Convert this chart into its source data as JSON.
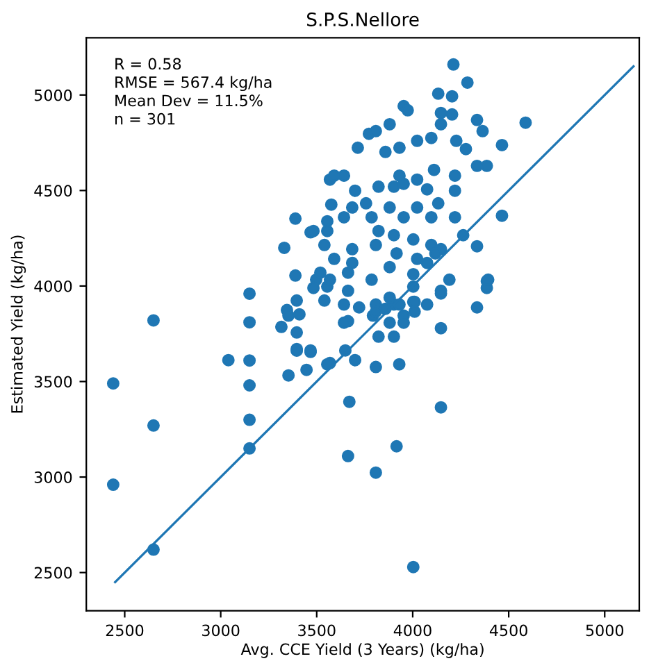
{
  "chart_data": {
    "type": "scatter",
    "title": "S.P.S.Nellore",
    "xlabel": "Avg. CCE Yield (3 Years) (kg/ha)",
    "ylabel": "Estimated Yield (kg/ha)",
    "annotations": [
      "R = 0.58",
      "RMSE = 567.4 kg/ha",
      "Mean Dev = 11.5%",
      "n = 301"
    ],
    "xlim": [
      2300,
      5180
    ],
    "ylim": [
      2300,
      5300
    ],
    "xticks": [
      2500,
      3000,
      3500,
      4000,
      4500,
      5000
    ],
    "yticks": [
      2500,
      3000,
      3500,
      4000,
      4500,
      5000
    ],
    "grid": false,
    "legend": false,
    "series": [
      {
        "marker": "circle",
        "color": "#1f77b4",
        "x": [
          2440,
          2440,
          2650,
          2650,
          2650,
          3040,
          3150,
          3150,
          3150,
          3150,
          3150,
          3150,
          3670,
          3663,
          3808,
          3916,
          4147,
          4003,
          3930,
          3808,
          3700,
          4335,
          4147,
          4386,
          4386,
          4212,
          4285,
          4588,
          4133,
          4205,
          4465,
          4465,
          4335,
          4393,
          4263,
          3331,
          3389,
          3468,
          3569,
          3591,
          3642,
          3389,
          3345,
          3316,
          3396,
          3396,
          3353,
          3447,
          3468,
          3569,
          3497,
          3555,
          3953,
          3974,
          3880,
          3772,
          3808,
          3714,
          3858,
          3931,
          4023,
          4097,
          4147,
          4147,
          4205,
          4335,
          4364,
          4277,
          4227,
          3931,
          3902,
          3953,
          4023,
          4111,
          4220,
          4335,
          4386,
          3700,
          3822,
          3757,
          4075,
          4220,
          3576,
          3685,
          3880,
          4023,
          4133,
          4220,
          4097,
          3953,
          3786,
          3642,
          3555,
          3483,
          3555,
          3822,
          3902,
          4003,
          4097,
          4147,
          3540,
          3685,
          3808,
          3591,
          3685,
          3916,
          4023,
          4118,
          3663,
          3519,
          3880,
          4075,
          4003,
          3786,
          3569,
          3483,
          3663,
          3540,
          3396,
          3410,
          3353,
          3642,
          3808,
          3858,
          3902,
          3953,
          3880,
          3793,
          3663,
          4003,
          4147,
          4191,
          4003,
          4075,
          3721,
          3808,
          3880,
          3931,
          4010,
          4010,
          3953,
          3902,
          3822,
          3642,
          3649,
          3555,
          3468,
          3396,
          4147
        ],
        "values": [
          3490,
          2960,
          3820,
          3270,
          2620,
          3612,
          3960,
          3810,
          3610,
          3480,
          3300,
          3150,
          3394,
          3110,
          3023,
          3161,
          3365,
          2529,
          3590,
          3576,
          3612,
          3888,
          3779,
          4026,
          3990,
          5160,
          5065,
          4855,
          5007,
          4993,
          4738,
          4368,
          4208,
          4033,
          4266,
          4200,
          4353,
          4281,
          4557,
          4578,
          4578,
          4055,
          3874,
          3786,
          3757,
          3662,
          3532,
          3561,
          3655,
          3597,
          4033,
          3997,
          4942,
          4920,
          4847,
          4797,
          4811,
          4724,
          4702,
          4724,
          4760,
          4775,
          4906,
          4847,
          4898,
          4869,
          4811,
          4717,
          4760,
          4578,
          4520,
          4535,
          4557,
          4608,
          4578,
          4629,
          4629,
          4499,
          4520,
          4433,
          4506,
          4499,
          4426,
          4411,
          4411,
          4411,
          4433,
          4360,
          4360,
          4360,
          4360,
          4360,
          4339,
          4288,
          4288,
          4288,
          4266,
          4244,
          4215,
          4193,
          4215,
          4193,
          4215,
          4142,
          4121,
          4171,
          4142,
          4171,
          4070,
          4070,
          4099,
          4121,
          4062,
          4033,
          4033,
          3990,
          3975,
          3924,
          3924,
          3852,
          3845,
          3903,
          3903,
          3881,
          3903,
          3845,
          3808,
          3845,
          3816,
          3917,
          3961,
          4033,
          3997,
          3903,
          3888,
          3866,
          3939,
          3903,
          3917,
          3866,
          3808,
          3735,
          3735,
          3808,
          3663,
          3590,
          3663,
          3670,
          3975
        ]
      },
      {
        "type": "line",
        "marker": "none",
        "color": "#1f77b4",
        "x": [
          2450,
          5150
        ],
        "values": [
          2450,
          5150
        ]
      }
    ]
  }
}
